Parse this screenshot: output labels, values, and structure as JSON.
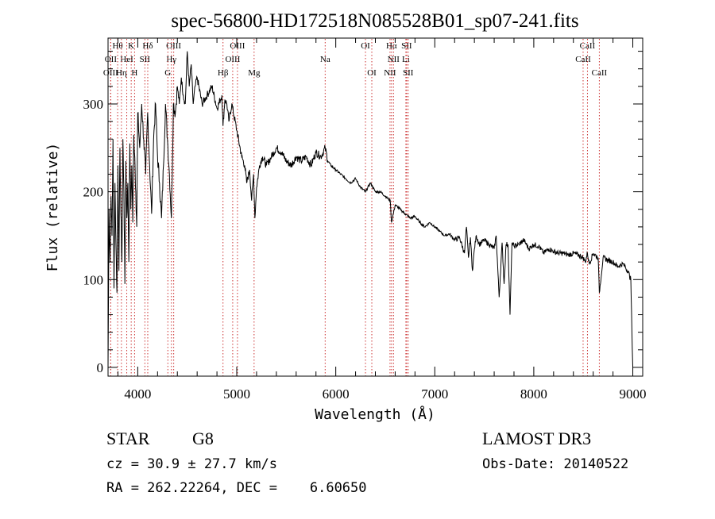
{
  "chart_data": {
    "type": "line",
    "title": "spec-56800-HD172518N085528B01_sp07-241.fits",
    "xlabel": "Wavelength (Å)",
    "ylabel": "Flux (relative)",
    "xlim": [
      3700,
      9100
    ],
    "ylim": [
      -10,
      375
    ],
    "x_ticks": [
      4000,
      5000,
      6000,
      7000,
      8000,
      9000
    ],
    "x_tick_labels": [
      "4000",
      "5000",
      "6000",
      "7000",
      "8000",
      "9000"
    ],
    "y_ticks": [
      0,
      100,
      200,
      300
    ],
    "y_tick_labels": [
      "0",
      "100",
      "200",
      "300"
    ],
    "series": [
      {
        "name": "flux",
        "x": [
          3700,
          3710,
          3720,
          3730,
          3740,
          3750,
          3760,
          3770,
          3780,
          3790,
          3800,
          3810,
          3820,
          3830,
          3840,
          3850,
          3860,
          3870,
          3880,
          3890,
          3900,
          3910,
          3920,
          3930,
          3940,
          3950,
          3960,
          3970,
          3980,
          3990,
          4000,
          4020,
          4040,
          4060,
          4080,
          4100,
          4120,
          4140,
          4160,
          4180,
          4200,
          4220,
          4240,
          4260,
          4280,
          4300,
          4320,
          4340,
          4360,
          4380,
          4400,
          4420,
          4440,
          4460,
          4480,
          4500,
          4520,
          4540,
          4560,
          4580,
          4600,
          4650,
          4700,
          4750,
          4800,
          4850,
          4861,
          4880,
          4900,
          4920,
          4950,
          5000,
          5050,
          5080,
          5100,
          5130,
          5150,
          5170,
          5183,
          5200,
          5230,
          5260,
          5300,
          5350,
          5400,
          5450,
          5500,
          5550,
          5600,
          5650,
          5700,
          5750,
          5800,
          5850,
          5893,
          5920,
          5950,
          6000,
          6050,
          6100,
          6150,
          6200,
          6250,
          6300,
          6350,
          6400,
          6450,
          6500,
          6550,
          6563,
          6600,
          6650,
          6700,
          6750,
          6800,
          6850,
          6900,
          6950,
          7000,
          7050,
          7100,
          7150,
          7200,
          7250,
          7300,
          7320,
          7340,
          7360,
          7380,
          7400,
          7420,
          7450,
          7500,
          7550,
          7600,
          7620,
          7650,
          7680,
          7700,
          7720,
          7740,
          7760,
          7780,
          7800,
          7850,
          7900,
          7950,
          8000,
          8050,
          8100,
          8150,
          8200,
          8250,
          8300,
          8350,
          8400,
          8450,
          8498,
          8520,
          8542,
          8560,
          8600,
          8650,
          8662,
          8700,
          8750,
          8800,
          8850,
          8900,
          8950,
          8980,
          8995,
          9000
        ],
        "y": [
          0,
          180,
          120,
          195,
          150,
          260,
          90,
          210,
          140,
          85,
          230,
          110,
          250,
          175,
          120,
          260,
          200,
          95,
          235,
          170,
          210,
          120,
          255,
          180,
          230,
          165,
          265,
          240,
          200,
          160,
          290,
          250,
          300,
          260,
          220,
          290,
          230,
          175,
          260,
          300,
          240,
          210,
          170,
          230,
          300,
          260,
          220,
          170,
          300,
          290,
          320,
          300,
          330,
          310,
          300,
          360,
          320,
          345,
          300,
          320,
          330,
          300,
          310,
          320,
          295,
          310,
          275,
          305,
          300,
          280,
          300,
          270,
          240,
          230,
          210,
          225,
          190,
          220,
          170,
          205,
          230,
          240,
          230,
          240,
          250,
          245,
          235,
          230,
          240,
          235,
          240,
          230,
          245,
          240,
          250,
          235,
          230,
          225,
          220,
          215,
          210,
          215,
          205,
          200,
          210,
          200,
          200,
          195,
          190,
          165,
          185,
          180,
          175,
          170,
          172,
          165,
          160,
          165,
          160,
          155,
          150,
          152,
          145,
          148,
          130,
          160,
          125,
          148,
          110,
          135,
          150,
          140,
          145,
          140,
          135,
          150,
          80,
          142,
          95,
          140,
          140,
          60,
          142,
          138,
          140,
          145,
          135,
          140,
          138,
          130,
          135,
          132,
          130,
          130,
          128,
          130,
          128,
          125,
          120,
          130,
          118,
          130,
          125,
          85,
          125,
          122,
          120,
          115,
          118,
          110,
          100,
          20,
          0
        ]
      }
    ],
    "line_markers": [
      {
        "label": "Hθ",
        "x": 3797,
        "row": 1
      },
      {
        "label": "OII",
        "x": 3727,
        "row": 2
      },
      {
        "label": "OIII",
        "x": 3727,
        "row": 3
      },
      {
        "label": "HeI",
        "x": 3889,
        "row": 2
      },
      {
        "label": "Hη",
        "x": 3835,
        "row": 3
      },
      {
        "label": "K",
        "x": 3934,
        "row": 1
      },
      {
        "label": "SII",
        "x": 4072,
        "row": 2
      },
      {
        "label": "H",
        "x": 3968,
        "row": 3
      },
      {
        "label": "Hδ",
        "x": 4101,
        "row": 1
      },
      {
        "label": "OIII",
        "x": 4363,
        "row": 1
      },
      {
        "label": "Hγ",
        "x": 4340,
        "row": 2
      },
      {
        "label": "G",
        "x": 4304,
        "row": 3
      },
      {
        "label": "Hβ",
        "x": 4861,
        "row": 3
      },
      {
        "label": "OIII",
        "x": 5007,
        "row": 1
      },
      {
        "label": "OIII",
        "x": 4959,
        "row": 2
      },
      {
        "label": "Mg",
        "x": 5175,
        "row": 3
      },
      {
        "label": "Na",
        "x": 5893,
        "row": 2
      },
      {
        "label": "OI",
        "x": 6300,
        "row": 1
      },
      {
        "label": "OI",
        "x": 6364,
        "row": 3
      },
      {
        "label": "Hα",
        "x": 6563,
        "row": 1
      },
      {
        "label": "SII",
        "x": 6716,
        "row": 1
      },
      {
        "label": "NII",
        "x": 6583,
        "row": 2
      },
      {
        "label": "Li",
        "x": 6708,
        "row": 2
      },
      {
        "label": "NII",
        "x": 6548,
        "row": 3
      },
      {
        "label": "SII",
        "x": 6731,
        "row": 3
      },
      {
        "label": "CaII",
        "x": 8542,
        "row": 1
      },
      {
        "label": "CaII",
        "x": 8498,
        "row": 2
      },
      {
        "label": "CaII",
        "x": 8662,
        "row": 3
      }
    ]
  },
  "info": {
    "object_class": "STAR",
    "subclass": "G8",
    "survey": "LAMOST DR3",
    "cz": "cz = 30.9 ± 27.7 km/s",
    "obs_date": "Obs-Date: 20140522",
    "coords": "RA = 262.22264, DEC =    6.60650"
  },
  "colors": {
    "marker_line": "#cc3333",
    "spectrum": "#000000",
    "axes": "#000000"
  }
}
